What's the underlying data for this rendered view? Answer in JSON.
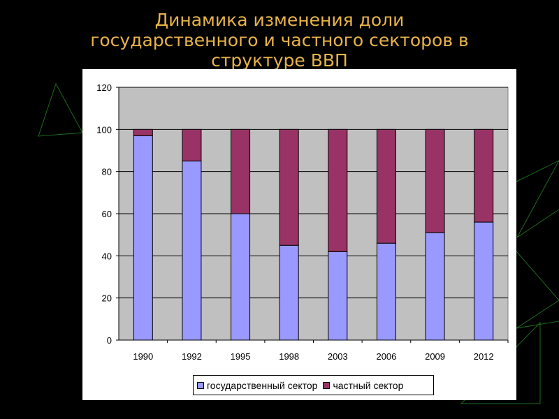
{
  "slide": {
    "title_lines": [
      "Динамика изменения доли",
      "государственного и частного секторов в",
      "структуре ВВП"
    ]
  },
  "colors": {
    "title": "#e8b448",
    "state": "#9999ff",
    "private": "#993366",
    "plot_background": "#c0c0c0",
    "decoration": "#1e6b1e"
  },
  "chart_data": {
    "type": "bar",
    "stacked": true,
    "title": "",
    "xlabel": "",
    "ylabel": "",
    "categories": [
      "1990",
      "1992",
      "1995",
      "1998",
      "2003",
      "2006",
      "2009",
      "2012"
    ],
    "series": [
      {
        "name": "государственный сектор",
        "values": [
          97,
          85,
          60,
          45,
          42,
          46,
          51,
          56
        ]
      },
      {
        "name": "частный сектор",
        "values": [
          3,
          15,
          40,
          55,
          58,
          54,
          49,
          44
        ]
      }
    ],
    "ylim": [
      0,
      120
    ],
    "yticks": [
      0,
      20,
      40,
      60,
      80,
      100,
      120
    ],
    "grid": true,
    "legend_position": "bottom"
  }
}
